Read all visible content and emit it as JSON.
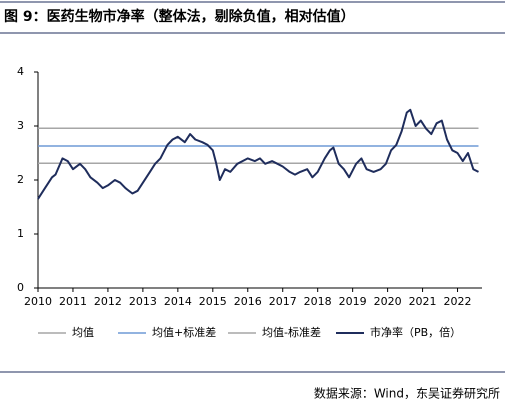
{
  "chart_data": {
    "type": "line",
    "title": "图 9：医药生物市净率（整体法，剔除负值，相对估值）",
    "source": "数据来源：Wind，东吴证券研究所",
    "x": [
      2010.0,
      2010.2,
      2010.4,
      2010.5,
      2010.7,
      2010.85,
      2011.0,
      2011.2,
      2011.35,
      2011.5,
      2011.7,
      2011.85,
      2012.0,
      2012.2,
      2012.35,
      2012.5,
      2012.7,
      2012.85,
      2013.0,
      2013.2,
      2013.35,
      2013.5,
      2013.7,
      2013.85,
      2014.0,
      2014.2,
      2014.35,
      2014.5,
      2014.7,
      2014.85,
      2015.0,
      2015.1,
      2015.2,
      2015.35,
      2015.5,
      2015.7,
      2015.85,
      2016.0,
      2016.2,
      2016.35,
      2016.5,
      2016.7,
      2016.85,
      2017.0,
      2017.2,
      2017.35,
      2017.5,
      2017.7,
      2017.85,
      2018.0,
      2018.2,
      2018.35,
      2018.45,
      2018.6,
      2018.75,
      2018.9,
      2019.1,
      2019.25,
      2019.4,
      2019.6,
      2019.8,
      2019.95,
      2020.1,
      2020.25,
      2020.4,
      2020.55,
      2020.65,
      2020.8,
      2020.95,
      2021.1,
      2021.25,
      2021.4,
      2021.55,
      2021.7,
      2021.85,
      2022.0,
      2022.15,
      2022.3,
      2022.45,
      2022.6
    ],
    "series": [
      {
        "name": "均值",
        "color": "#a6a6a6",
        "values": [
          2.96,
          2.96,
          2.96,
          2.96,
          2.96,
          2.96,
          2.96,
          2.96,
          2.96,
          2.96,
          2.96,
          2.96,
          2.96,
          2.96,
          2.96,
          2.96,
          2.96,
          2.96,
          2.96,
          2.96,
          2.96,
          2.96,
          2.96,
          2.96,
          2.96,
          2.96,
          2.96,
          2.96,
          2.96,
          2.96,
          2.96,
          2.96,
          2.96,
          2.96,
          2.96,
          2.96,
          2.96,
          2.96,
          2.96,
          2.96,
          2.96,
          2.96,
          2.96,
          2.96,
          2.96,
          2.96,
          2.96,
          2.96,
          2.96,
          2.96,
          2.96,
          2.96,
          2.96,
          2.96,
          2.96,
          2.96,
          2.96,
          2.96,
          2.96,
          2.96,
          2.96,
          2.96,
          2.96,
          2.96,
          2.96,
          2.96,
          2.96,
          2.96,
          2.96,
          2.96,
          2.96,
          2.96,
          2.96,
          2.96,
          2.96,
          2.96,
          2.96,
          2.96,
          2.96,
          2.96
        ]
      },
      {
        "name": "均值+标准差",
        "color": "#6f9ad6",
        "values": [
          2.63,
          2.63,
          2.63,
          2.63,
          2.63,
          2.63,
          2.63,
          2.63,
          2.63,
          2.63,
          2.63,
          2.63,
          2.63,
          2.63,
          2.63,
          2.63,
          2.63,
          2.63,
          2.63,
          2.63,
          2.63,
          2.63,
          2.63,
          2.63,
          2.63,
          2.63,
          2.63,
          2.63,
          2.63,
          2.63,
          2.63,
          2.63,
          2.63,
          2.63,
          2.63,
          2.63,
          2.63,
          2.63,
          2.63,
          2.63,
          2.63,
          2.63,
          2.63,
          2.63,
          2.63,
          2.63,
          2.63,
          2.63,
          2.63,
          2.63,
          2.63,
          2.63,
          2.63,
          2.63,
          2.63,
          2.63,
          2.63,
          2.63,
          2.63,
          2.63,
          2.63,
          2.63,
          2.63,
          2.63,
          2.63,
          2.63,
          2.63,
          2.63,
          2.63,
          2.63,
          2.63,
          2.63,
          2.63,
          2.63,
          2.63,
          2.63,
          2.63,
          2.63,
          2.63,
          2.63
        ]
      },
      {
        "name": "均值-标准差",
        "color": "#a6a6a6",
        "values": [
          2.31,
          2.31,
          2.31,
          2.31,
          2.31,
          2.31,
          2.31,
          2.31,
          2.31,
          2.31,
          2.31,
          2.31,
          2.31,
          2.31,
          2.31,
          2.31,
          2.31,
          2.31,
          2.31,
          2.31,
          2.31,
          2.31,
          2.31,
          2.31,
          2.31,
          2.31,
          2.31,
          2.31,
          2.31,
          2.31,
          2.31,
          2.31,
          2.31,
          2.31,
          2.31,
          2.31,
          2.31,
          2.31,
          2.31,
          2.31,
          2.31,
          2.31,
          2.31,
          2.31,
          2.31,
          2.31,
          2.31,
          2.31,
          2.31,
          2.31,
          2.31,
          2.31,
          2.31,
          2.31,
          2.31,
          2.31,
          2.31,
          2.31,
          2.31,
          2.31,
          2.31,
          2.31,
          2.31,
          2.31,
          2.31,
          2.31,
          2.31,
          2.31,
          2.31,
          2.31,
          2.31,
          2.31,
          2.31,
          2.31,
          2.31,
          2.31,
          2.31,
          2.31,
          2.31,
          2.31
        ]
      },
      {
        "name": "市净率（PB，倍）",
        "color": "#1f2d5c",
        "values": [
          1.65,
          1.85,
          2.05,
          2.1,
          2.4,
          2.35,
          2.2,
          2.3,
          2.2,
          2.05,
          1.95,
          1.85,
          1.9,
          2.0,
          1.95,
          1.85,
          1.75,
          1.8,
          1.95,
          2.15,
          2.3,
          2.4,
          2.65,
          2.75,
          2.8,
          2.7,
          2.85,
          2.75,
          2.7,
          2.65,
          2.55,
          2.3,
          2.0,
          2.2,
          2.15,
          2.3,
          2.35,
          2.4,
          2.35,
          2.4,
          2.3,
          2.35,
          2.3,
          2.25,
          2.15,
          2.1,
          2.15,
          2.2,
          2.05,
          2.15,
          2.4,
          2.55,
          2.6,
          2.3,
          2.2,
          2.05,
          2.3,
          2.4,
          2.2,
          2.15,
          2.2,
          2.3,
          2.55,
          2.65,
          2.9,
          3.25,
          3.3,
          3.0,
          3.1,
          2.95,
          2.85,
          3.05,
          3.1,
          2.75,
          2.55,
          2.5,
          2.35,
          2.5,
          2.2,
          2.15
        ]
      }
    ],
    "xlim": [
      2010,
      2022.7
    ],
    "xticks": [
      2010,
      2011,
      2012,
      2013,
      2014,
      2015,
      2016,
      2017,
      2018,
      2019,
      2020,
      2021,
      2022
    ],
    "ylim": [
      0,
      4
    ],
    "yticks": [
      0,
      1,
      2,
      3,
      4
    ]
  }
}
